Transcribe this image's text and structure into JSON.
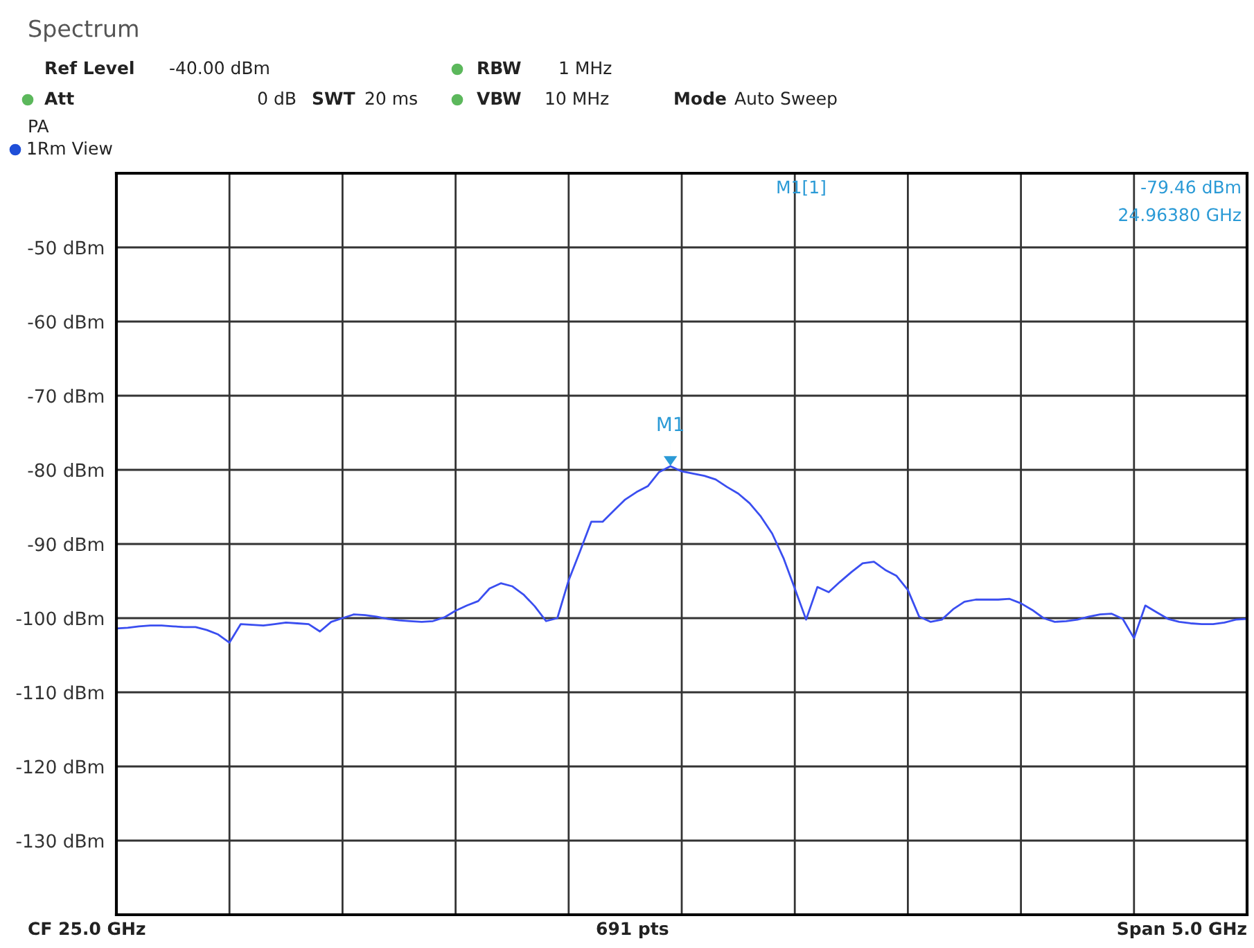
{
  "chart_data": {
    "type": "line",
    "title": "Spectrum",
    "categories": [
      null,
      null,
      null,
      null,
      null,
      null,
      null,
      null,
      null,
      null,
      null,
      null,
      null,
      null,
      null,
      null,
      null,
      null,
      null,
      null,
      null,
      null,
      null,
      null,
      null,
      null,
      null,
      null,
      null,
      null,
      null,
      null,
      null,
      null,
      null,
      null,
      null,
      null,
      null,
      null,
      null,
      null,
      null,
      null,
      null,
      null,
      null,
      null,
      null,
      null,
      null,
      null,
      null,
      null,
      null,
      null,
      null,
      null,
      null,
      null,
      null,
      null,
      null,
      null,
      null,
      null,
      null,
      null,
      null,
      null,
      null,
      null,
      null,
      null,
      null,
      null,
      null,
      null,
      null,
      null,
      null,
      null,
      null,
      null,
      null,
      null,
      null,
      null,
      null,
      null,
      null,
      null,
      null,
      null,
      null,
      null,
      null,
      null,
      null,
      null,
      null
    ],
    "series": [
      {
        "color": "#3a4ef0",
        "values": [
          -101.4,
          -101.3,
          -101.1,
          -101.0,
          -101.0,
          -101.1,
          -101.2,
          -101.2,
          -101.6,
          -102.2,
          -103.3,
          -100.8,
          -100.9,
          -101.0,
          -100.8,
          -100.6,
          -100.7,
          -100.8,
          -101.8,
          -100.5,
          -100.0,
          -99.5,
          -99.6,
          -99.8,
          -100.1,
          -100.3,
          -100.4,
          -100.5,
          -100.4,
          -99.9,
          -99.0,
          -98.3,
          -97.7,
          -96.0,
          -95.3,
          -95.7,
          -96.8,
          -98.4,
          -100.4,
          -100.0,
          -94.9,
          -91.0,
          -87.0,
          -87.0,
          -85.5,
          -84.0,
          -83.0,
          -82.2,
          -80.3,
          -79.5,
          -80.2,
          -80.5,
          -80.8,
          -81.3,
          -82.3,
          -83.2,
          -84.5,
          -86.3,
          -88.6,
          -91.9,
          -96.0,
          -100.2,
          -95.8,
          -96.5,
          -95.1,
          -93.8,
          -92.6,
          -92.4,
          -93.5,
          -94.3,
          -96.2,
          -99.8,
          -100.5,
          -100.2,
          -98.8,
          -97.8,
          -97.5,
          -97.5,
          -97.5,
          -97.4,
          -98.0,
          -98.9,
          -100.0,
          -100.5,
          -100.4,
          -100.2,
          -99.8,
          -99.5,
          -99.4,
          -100.1,
          -102.7,
          -98.3,
          -99.2,
          -100.1,
          -100.5,
          -100.7,
          -100.8,
          -100.8,
          -100.6,
          -100.2,
          -100.1
        ]
      }
    ],
    "ylim": [
      -140,
      -40
    ],
    "yticks": [
      {
        "value": -50,
        "label": "-50 dBm"
      },
      {
        "value": -60,
        "label": "-60 dBm"
      },
      {
        "value": -70,
        "label": "-70 dBm"
      },
      {
        "value": -80,
        "label": "-80 dBm"
      },
      {
        "value": -90,
        "label": "-90 dBm"
      },
      {
        "value": -100,
        "label": "-100 dBm"
      },
      {
        "value": -110,
        "label": "-110 dBm"
      },
      {
        "value": -120,
        "label": "-120 dBm"
      },
      {
        "value": -130,
        "label": "-130 dBm"
      }
    ],
    "grid": true,
    "annotations": [
      "Ref Level",
      "-40.00 dBm",
      "Att",
      "0 dB",
      "SWT",
      "20 ms",
      "RBW",
      "1 MHz",
      "VBW",
      "10 MHz",
      "Mode",
      "Auto Sweep",
      "PA",
      "1Rm View",
      "M1[1]",
      "-79.46 dBm",
      "24.96380 GHz",
      "CF 25.0 GHz",
      "691 pts",
      "Span 5.0 GHz",
      {
        "text": "M1",
        "y": -79.46
      }
    ]
  }
}
